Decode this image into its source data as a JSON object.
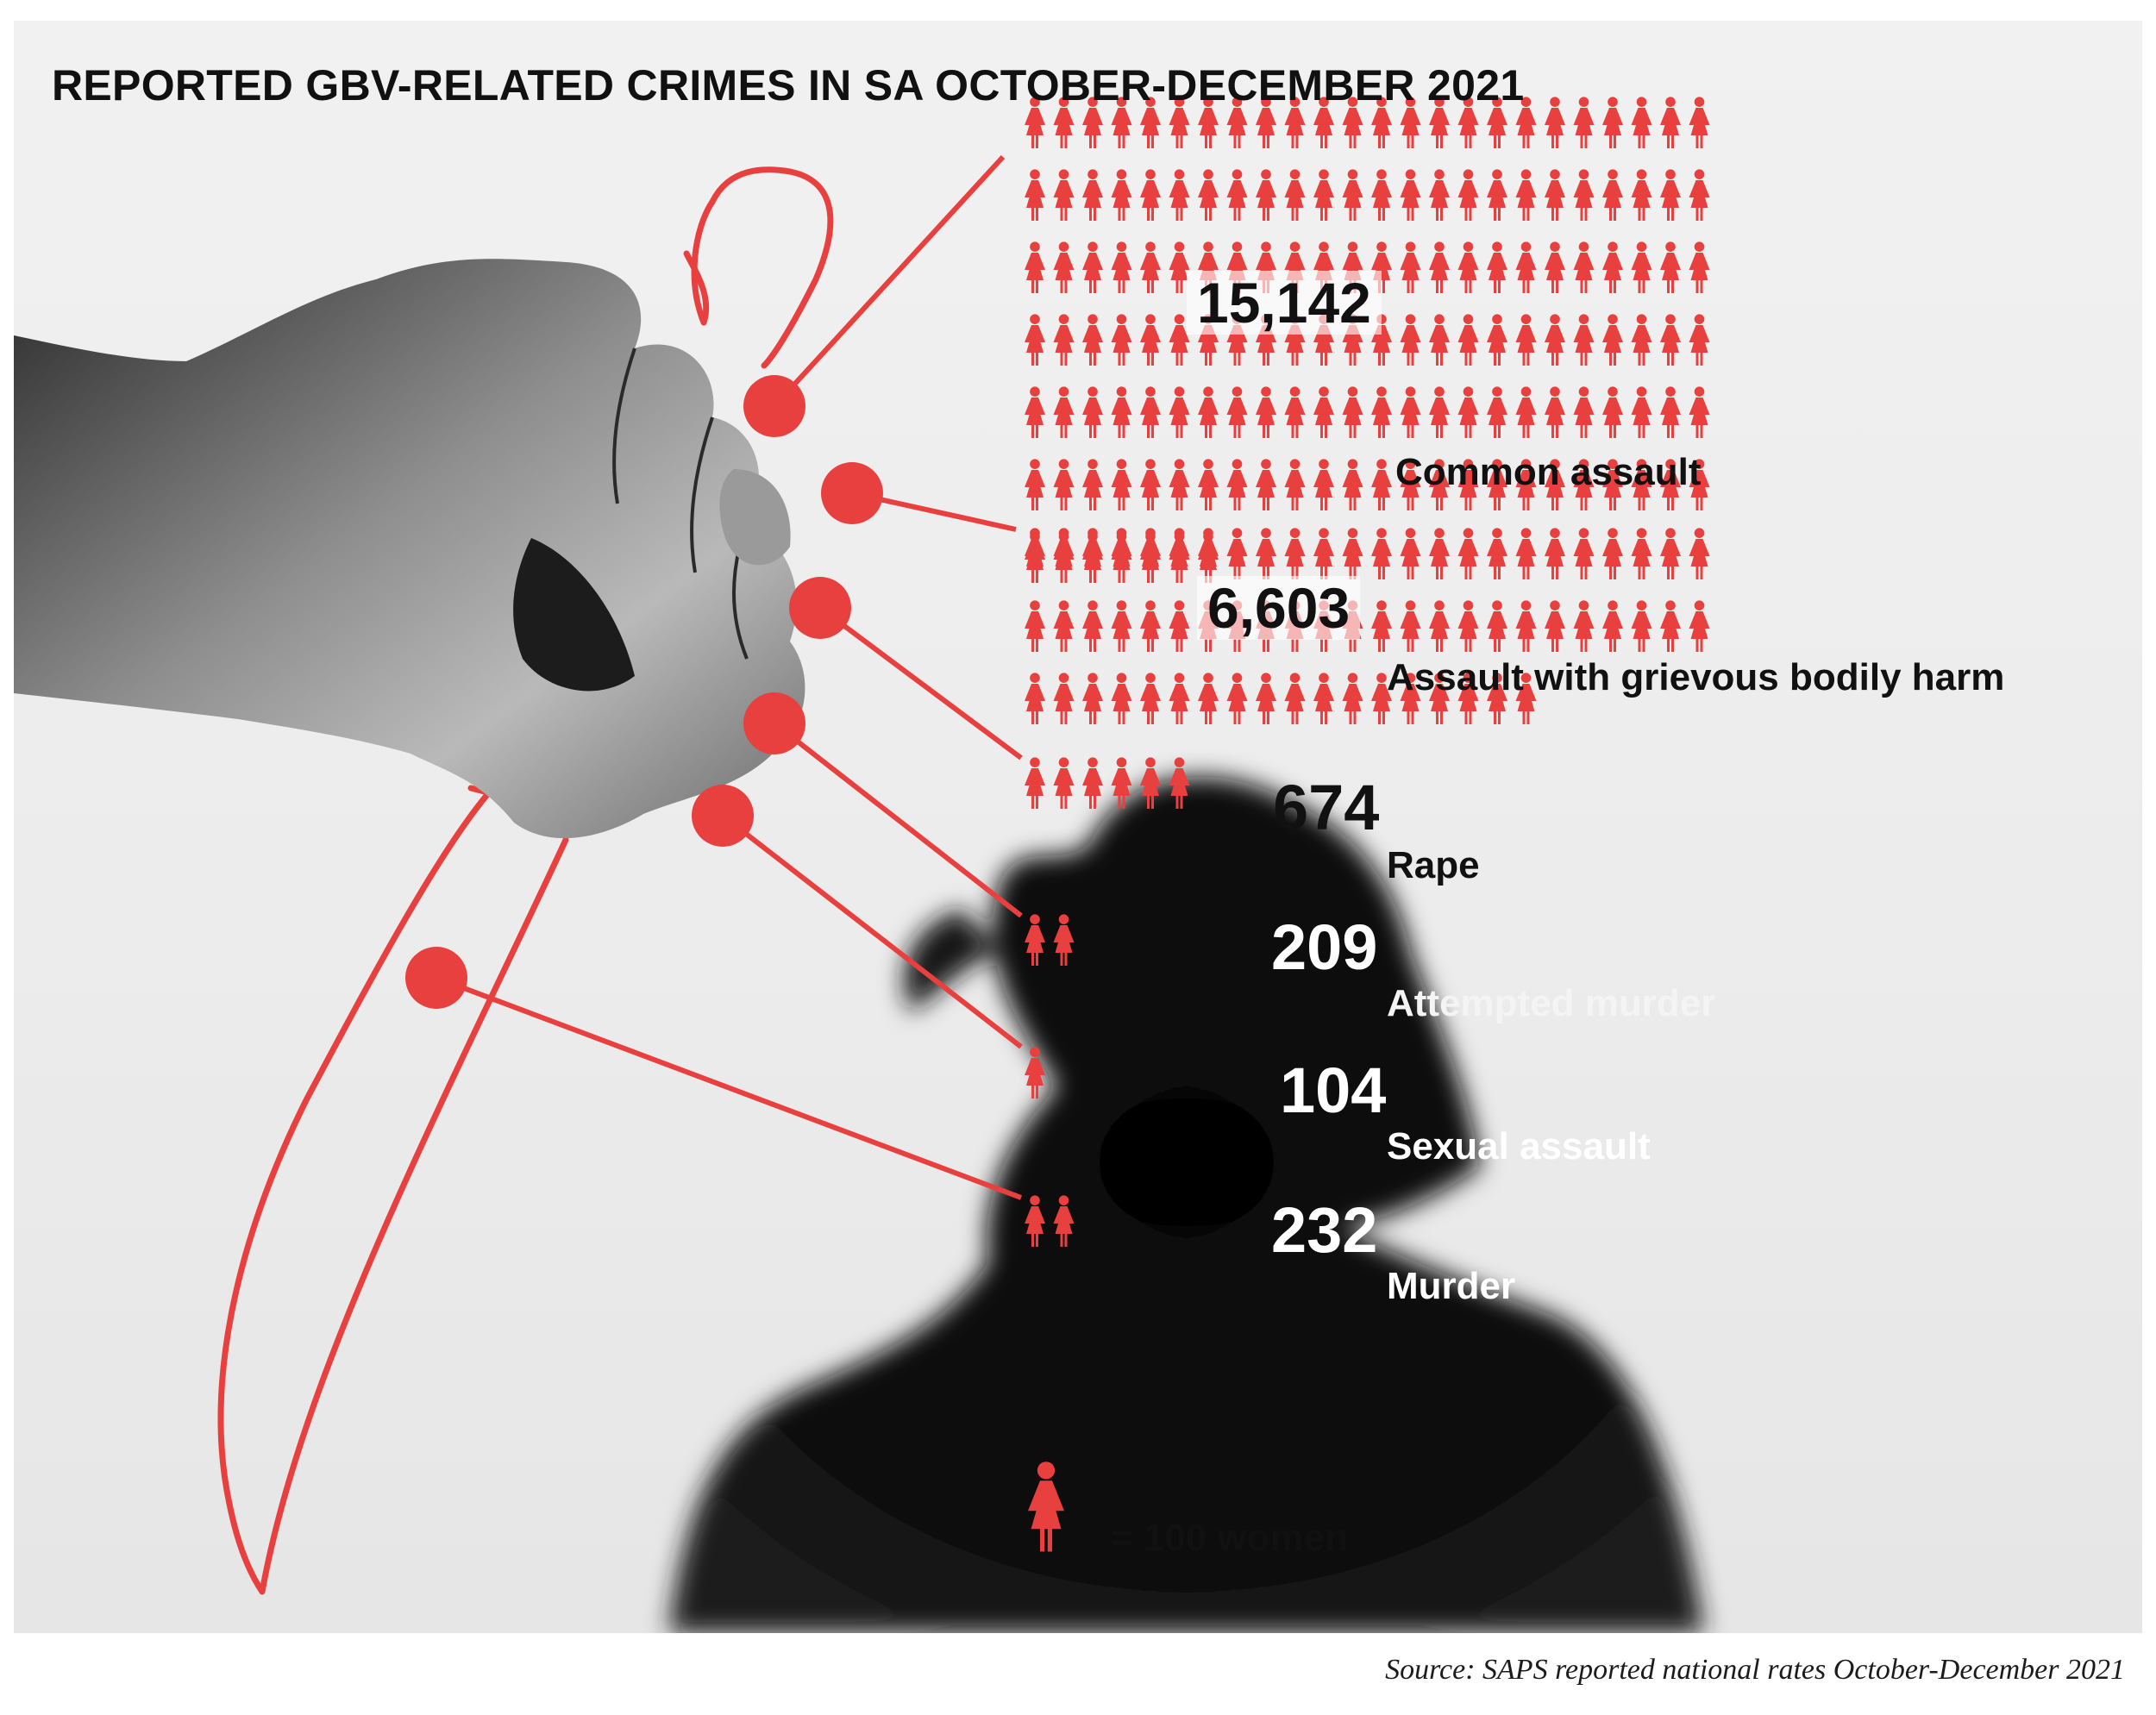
{
  "title": "REPORTED GBV-RELATED CRIMES IN SA OCTOBER-DECEMBER 2021",
  "source": "Source: SAPS reported national rates October-December 2021",
  "legend": {
    "icon": "woman-icon",
    "text": "= 100 women",
    "unit_value": 100
  },
  "colors": {
    "accent": "#e8403f",
    "text": "#111111",
    "background": "#eeeeee",
    "silhouette": "#0b0b0b"
  },
  "chart_data": {
    "type": "pictogram",
    "unit": "women",
    "icon_value": 100,
    "series": [
      {
        "label": "Common assault",
        "value": 15142,
        "display": "15,142"
      },
      {
        "label": "Assault with grievous bodily harm",
        "value": 6603,
        "display": "6,603"
      },
      {
        "label": "Rape",
        "value": 674,
        "display": "674"
      },
      {
        "label": "Attempted murder",
        "value": 209,
        "display": "209"
      },
      {
        "label": "Sexual assault",
        "value": 104,
        "display": "104"
      },
      {
        "label": "Murder",
        "value": 232,
        "display": "232"
      }
    ]
  }
}
